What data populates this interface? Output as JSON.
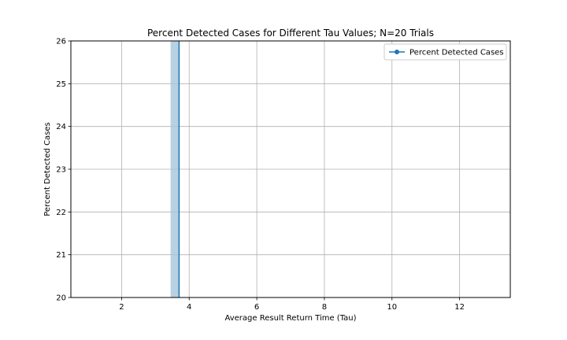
{
  "chart_data": {
    "type": "line",
    "title": "Percent Detected Cases for Different Tau Values; N=20 Trials",
    "xlabel": "Average Result Return Time (Tau)",
    "ylabel": "Percent Detected Cases",
    "xlim": [
      0.5,
      13.5
    ],
    "ylim": [
      20,
      26
    ],
    "xticks": [
      2,
      4,
      6,
      8,
      10,
      12
    ],
    "yticks": [
      20,
      21,
      22,
      23,
      24,
      25,
      26
    ],
    "grid": true,
    "legend_position": "top-right",
    "series": [
      {
        "name": "Percent Detected Cases",
        "color": "#1f77b4",
        "marker": "circle",
        "x": [
          3.7,
          3.7
        ],
        "y": [
          20,
          26
        ],
        "band": {
          "x_low": 3.45,
          "x_high": 3.72,
          "color": "#a6c5db"
        }
      }
    ]
  }
}
